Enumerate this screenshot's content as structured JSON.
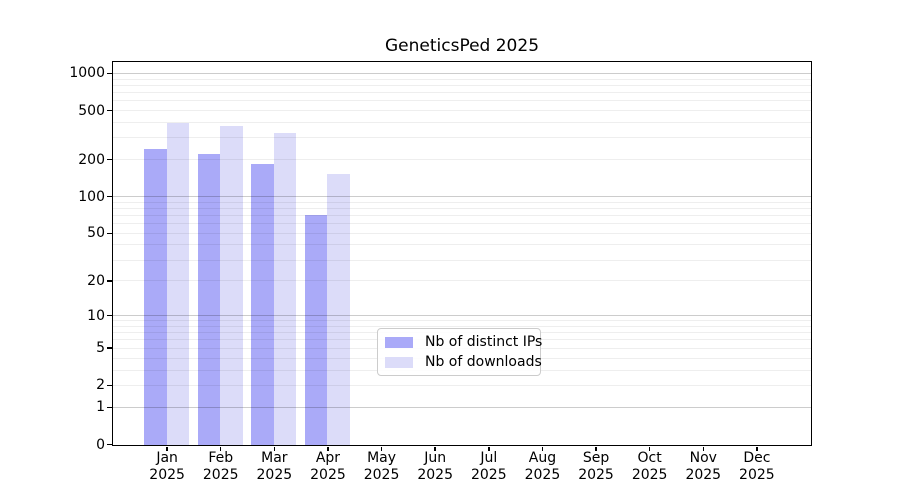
{
  "chart_data": {
    "type": "bar",
    "title": "GeneticsPed 2025",
    "yscale": "log1p",
    "ylim": [
      0,
      1224
    ],
    "yticks": [
      0,
      1,
      2,
      5,
      10,
      20,
      50,
      100,
      200,
      500,
      1000
    ],
    "grid": {
      "major": [
        1,
        10,
        100,
        1000
      ],
      "minor": [
        2,
        3,
        4,
        5,
        6,
        7,
        8,
        9,
        20,
        30,
        40,
        50,
        60,
        70,
        80,
        90,
        200,
        300,
        400,
        500,
        600,
        700,
        800,
        900
      ]
    },
    "categories": [
      "Jan",
      "Feb",
      "Mar",
      "Apr",
      "May",
      "Jun",
      "Jul",
      "Aug",
      "Sep",
      "Oct",
      "Nov",
      "Dec"
    ],
    "xtick_sublabel": "2025",
    "series": [
      {
        "name": "Nb of distinct IPs",
        "color": "#aaaaf8",
        "values": [
          245,
          224,
          186,
          71,
          null,
          null,
          null,
          null,
          null,
          null,
          null,
          null
        ]
      },
      {
        "name": "Nb of downloads",
        "color": "#dcdcf9",
        "values": [
          400,
          375,
          335,
          154,
          null,
          null,
          null,
          null,
          null,
          null,
          null,
          null
        ]
      }
    ],
    "legend": {
      "position": "lower center"
    },
    "axis_color": "#000000",
    "grid_major_color": "#d0d0d0",
    "grid_minor_color": "#efefef"
  }
}
